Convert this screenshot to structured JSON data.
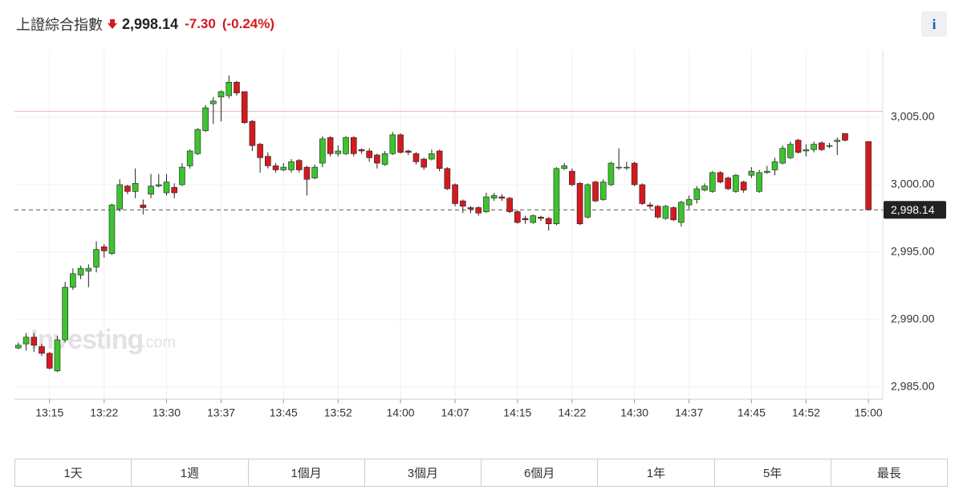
{
  "header": {
    "title": "上證綜合指數",
    "price": "2,998.14",
    "change": "-7.30",
    "change_percent": "(-0.24%)",
    "info": "i"
  },
  "chart_data": {
    "type": "candlestick",
    "categories": [
      null,
      null,
      null,
      null,
      "13:15",
      null,
      null,
      null,
      null,
      null,
      null,
      "13:22",
      null,
      null,
      null,
      null,
      null,
      null,
      null,
      "13:30",
      null,
      null,
      null,
      null,
      null,
      null,
      "13:37",
      null,
      null,
      null,
      null,
      null,
      null,
      null,
      "13:45",
      null,
      null,
      null,
      null,
      null,
      null,
      "13:52",
      null,
      null,
      null,
      null,
      null,
      null,
      null,
      "14:00",
      null,
      null,
      null,
      null,
      null,
      null,
      "14:07",
      null,
      null,
      null,
      null,
      null,
      null,
      null,
      "14:15",
      null,
      null,
      null,
      null,
      null,
      null,
      "14:22",
      null,
      null,
      null,
      null,
      null,
      null,
      null,
      "14:30",
      null,
      null,
      null,
      null,
      null,
      null,
      "14:37",
      null,
      null,
      null,
      null,
      null,
      null,
      null,
      "14:45",
      null,
      null,
      null,
      null,
      null,
      null,
      "14:52",
      null,
      null,
      null,
      null,
      null,
      null,
      null,
      "15:00"
    ],
    "open": [
      2987.9,
      2988.2,
      2988.7,
      2988.0,
      2987.5,
      2986.2,
      2988.5,
      2992.4,
      2993.3,
      2993.6,
      2993.9,
      2995.4,
      2994.9,
      2998.2,
      2999.9,
      2999.5,
      2998.5,
      2999.3,
      2999.9,
      2999.4,
      2999.8,
      3000.0,
      3001.4,
      3002.3,
      3004.0,
      3006.0,
      3006.5,
      3006.6,
      3007.6,
      3006.9,
      3004.7,
      3003.0,
      3002.1,
      3001.4,
      3001.1,
      3001.1,
      3001.8,
      3001.3,
      3000.5,
      3001.6,
      3003.5,
      3002.3,
      3002.3,
      3003.5,
      3002.6,
      3002.5,
      3002.2,
      3001.5,
      3002.3,
      3003.7,
      3002.5,
      3002.3,
      3001.9,
      3001.9,
      3002.5,
      3001.2,
      3000.0,
      2998.8,
      2998.3,
      2998.3,
      2998.0,
      2999.0,
      2999.1,
      2999.0,
      2998.0,
      2997.5,
      2997.2,
      2997.6,
      2997.5,
      2997.1,
      3001.2,
      3001.0,
      3000.1,
      2997.6,
      3000.2,
      2998.9,
      3000.0,
      3001.3,
      3001.3,
      3001.6,
      3000.0,
      2998.5,
      2998.4,
      2997.5,
      2998.3,
      2997.2,
      2998.5,
      2998.9,
      2999.6,
      2999.5,
      3000.9,
      3000.5,
      2999.5,
      3000.2,
      3000.7,
      2999.5,
      3000.9,
      3001.1,
      3001.6,
      3002.0,
      3003.3,
      3002.5,
      3002.6,
      3003.1,
      3002.9,
      3003.2,
      3003.8,
      null,
      null,
      3003.2
    ],
    "high": [
      2988.3,
      2989.0,
      2989.0,
      2988.2,
      2987.6,
      2988.8,
      2992.8,
      2993.8,
      2994.0,
      2994.1,
      2995.8,
      2995.6,
      2998.6,
      3000.4,
      3000.0,
      3001.2,
      2998.9,
      3000.8,
      3000.8,
      3000.8,
      3000.1,
      3001.6,
      3002.6,
      3004.2,
      3005.9,
      3006.5,
      3007.0,
      3008.1,
      3007.7,
      3006.9,
      3004.8,
      3003.1,
      3002.4,
      3001.6,
      3001.6,
      3001.9,
      3001.9,
      3001.4,
      3001.5,
      3003.6,
      3003.6,
      3002.9,
      3003.6,
      3003.6,
      3002.7,
      3002.7,
      3002.3,
      3002.5,
      3003.9,
      3003.8,
      3002.6,
      3002.4,
      3002.0,
      3002.6,
      3002.6,
      3001.3,
      3000.1,
      2998.9,
      2998.4,
      2998.4,
      2999.4,
      2999.4,
      2999.3,
      2999.1,
      2998.1,
      2997.7,
      2997.8,
      2997.7,
      2997.6,
      3001.3,
      3001.6,
      3001.2,
      3000.2,
      3000.1,
      3000.3,
      3000.4,
      3001.7,
      3002.7,
      3001.7,
      3001.7,
      3000.1,
      2998.7,
      2998.5,
      2998.5,
      2998.4,
      2998.8,
      2999.2,
      2999.9,
      3000.1,
      3001.0,
      3001.0,
      3000.6,
      3000.8,
      3000.3,
      3001.3,
      3001.1,
      3001.4,
      3002.0,
      3002.9,
      3003.2,
      3003.4,
      3003.0,
      3003.2,
      3003.2,
      3003.1,
      3003.5,
      3003.8,
      null,
      null,
      3003.2
    ],
    "low": [
      2987.8,
      2987.7,
      2987.6,
      2987.3,
      2986.3,
      2986.1,
      2988.3,
      2992.2,
      2993.0,
      2992.4,
      2993.5,
      2994.6,
      2994.8,
      2998.0,
      2999.3,
      2999.0,
      2997.8,
      2999.0,
      2999.8,
      2999.2,
      2999.0,
      2999.9,
      3001.2,
      3002.2,
      3003.9,
      3004.5,
      3004.7,
      3006.4,
      3006.6,
      3004.5,
      3002.5,
      3000.9,
      3001.2,
      3000.9,
      3001.0,
      3000.9,
      3000.9,
      2999.2,
      3000.4,
      3001.3,
      3002.1,
      3002.1,
      3002.2,
      3002.1,
      3002.3,
      3001.7,
      3001.2,
      3001.4,
      3002.2,
      3002.3,
      3002.2,
      3001.5,
      3001.1,
      3001.8,
      3001.0,
      2999.6,
      2998.4,
      2997.9,
      2997.9,
      2997.7,
      2997.9,
      2998.8,
      2998.8,
      2997.9,
      2997.1,
      2997.1,
      2997.1,
      2997.3,
      2996.6,
      2997.0,
      3001.1,
      2999.9,
      2997.0,
      2997.5,
      2998.7,
      2998.8,
      2999.9,
      3001.1,
      3001.1,
      2999.9,
      2998.5,
      2998.2,
      2997.5,
      2997.4,
      2997.3,
      2996.9,
      2998.2,
      2998.6,
      2999.5,
      2999.4,
      3000.1,
      2999.6,
      2999.4,
      2999.4,
      3000.5,
      2999.4,
      3000.8,
      3000.7,
      3001.5,
      3001.9,
      3002.3,
      3002.1,
      3002.4,
      3002.5,
      3002.7,
      3002.2,
      3003.2,
      null,
      null,
      2998.14
    ],
    "close": [
      2988.1,
      2988.7,
      2988.1,
      2987.5,
      2986.4,
      2988.5,
      2992.4,
      2993.4,
      2993.8,
      2993.8,
      2995.2,
      2995.1,
      2998.5,
      3000.0,
      2999.5,
      3000.1,
      2998.3,
      2999.9,
      3000.0,
      3000.2,
      2999.4,
      3001.3,
      3002.5,
      3004.1,
      3005.7,
      3006.2,
      3006.9,
      3007.6,
      3006.8,
      3004.6,
      3002.9,
      3002.0,
      3001.4,
      3001.1,
      3001.3,
      3001.7,
      3001.1,
      3000.4,
      3001.3,
      3003.4,
      3002.3,
      3002.5,
      3003.5,
      3002.3,
      3002.5,
      3002.0,
      3001.6,
      3002.3,
      3003.7,
      3002.4,
      3002.4,
      3001.7,
      3001.3,
      3002.3,
      3001.2,
      2999.7,
      2998.6,
      2998.4,
      2998.2,
      2997.9,
      2999.1,
      2999.2,
      2999.0,
      2998.0,
      2997.2,
      2997.4,
      2997.7,
      2997.5,
      2997.1,
      3001.2,
      3001.4,
      3000.0,
      2997.1,
      3000.0,
      2998.8,
      3000.2,
      3001.6,
      3001.3,
      3001.3,
      3000.0,
      2998.6,
      2998.4,
      2997.6,
      2998.4,
      2997.4,
      2998.7,
      2998.9,
      2999.7,
      2999.9,
      3000.9,
      3000.2,
      2999.7,
      3000.7,
      2999.6,
      3001.0,
      3000.9,
      3001.0,
      3001.7,
      3002.7,
      3003.0,
      3002.4,
      3002.6,
      3003.0,
      3002.6,
      3002.9,
      3003.3,
      3003.3,
      null,
      null,
      2998.14
    ],
    "up_color": "#3cc32e",
    "down_color": "#d41a1f",
    "ylim": [
      2984.1,
      3010.0
    ],
    "yticks": [
      {
        "value": 2985,
        "label": "2,985.00"
      },
      {
        "value": 2990,
        "label": "2,990.00"
      },
      {
        "value": 2995,
        "label": "2,995.00"
      },
      {
        "value": 3000,
        "label": "3,000.00"
      },
      {
        "value": 3005,
        "label": "3,005.00"
      }
    ],
    "grid": true,
    "reference_line": 3005.44,
    "last_price": {
      "value": 2998.14,
      "label": "2,998.14"
    },
    "watermark": {
      "brand": "Investing",
      "suffix": ".com"
    }
  },
  "range_buttons": [
    "1天",
    "1週",
    "1個月",
    "3個月",
    "6個月",
    "1年",
    "5年",
    "最長"
  ]
}
